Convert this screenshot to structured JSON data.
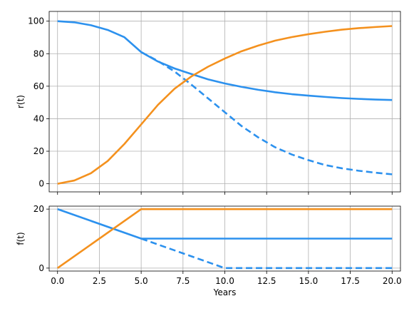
{
  "colors": {
    "blue": "#2c91ee",
    "orange": "#f4911e"
  },
  "chart_data": [
    {
      "type": "line",
      "ylabel": "r(t)",
      "xlabel": "",
      "xlim": [
        -0.5,
        20.5
      ],
      "ylim": [
        -5,
        106
      ],
      "xticks": [
        0.0,
        2.5,
        5.0,
        7.5,
        10.0,
        12.5,
        15.0,
        17.5,
        20.0
      ],
      "xtick_labels_visible": false,
      "yticks": [
        0,
        20,
        40,
        60,
        80,
        100
      ],
      "ytick_labels": [
        "0",
        "20",
        "40",
        "60",
        "80",
        "100"
      ],
      "grid": true,
      "series": [
        {
          "color": "#2c91ee",
          "style": "solid",
          "x": [
            0,
            1,
            2,
            3,
            4,
            5,
            6,
            7,
            8,
            9,
            10,
            11,
            12,
            13,
            14,
            15,
            16,
            17,
            18,
            19,
            20
          ],
          "y": [
            100,
            99.3,
            97.5,
            94.6,
            90.1,
            81,
            75.2,
            70.9,
            67.5,
            64.2,
            61.7,
            59.6,
            57.8,
            56.3,
            55.1,
            54.2,
            53.4,
            52.7,
            52.2,
            51.8,
            51.5
          ]
        },
        {
          "color": "#2c91ee",
          "style": "dashed",
          "x": [
            5,
            6,
            7,
            8,
            9,
            10,
            11,
            12,
            13,
            14,
            15,
            16,
            17,
            18,
            19,
            20
          ],
          "y": [
            81,
            75.5,
            69,
            61,
            52.5,
            44,
            35.5,
            28.5,
            22.5,
            18,
            14.5,
            11.5,
            9.5,
            8,
            6.8,
            5.8
          ]
        },
        {
          "color": "#f4911e",
          "style": "solid",
          "x": [
            0,
            1,
            2,
            3,
            4,
            5,
            6,
            7,
            8,
            9,
            10,
            11,
            12,
            13,
            14,
            15,
            16,
            17,
            18,
            19,
            20
          ],
          "y": [
            0,
            2,
            6.5,
            14,
            24.5,
            36.5,
            48.5,
            58.5,
            66,
            72,
            77,
            81.5,
            85,
            88,
            90.2,
            92,
            93.5,
            94.8,
            95.7,
            96.4,
            97
          ]
        }
      ]
    },
    {
      "type": "line",
      "ylabel": "f(t)",
      "xlabel": "Years",
      "xlim": [
        -0.5,
        20.5
      ],
      "ylim": [
        -1,
        21
      ],
      "xticks": [
        0.0,
        2.5,
        5.0,
        7.5,
        10.0,
        12.5,
        15.0,
        17.5,
        20.0
      ],
      "xtick_labels": [
        "0.0",
        "2.5",
        "5.0",
        "7.5",
        "10.0",
        "12.5",
        "15.0",
        "17.5",
        "20.0"
      ],
      "yticks": [
        0,
        20
      ],
      "ytick_labels": [
        "0",
        "20"
      ],
      "grid": true,
      "series": [
        {
          "color": "#2c91ee",
          "style": "solid",
          "x": [
            0,
            5,
            20
          ],
          "y": [
            20,
            10,
            10
          ]
        },
        {
          "color": "#2c91ee",
          "style": "dashed",
          "x": [
            5,
            10,
            20
          ],
          "y": [
            10,
            0,
            0
          ]
        },
        {
          "color": "#f4911e",
          "style": "solid",
          "x": [
            0,
            5,
            20
          ],
          "y": [
            0,
            20,
            20
          ]
        }
      ]
    }
  ]
}
